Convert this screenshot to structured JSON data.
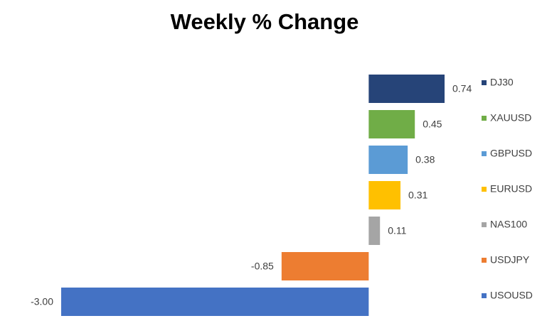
{
  "chart_data": {
    "type": "bar",
    "orientation": "horizontal",
    "title": "Weekly % Change",
    "categories": [
      "DJ30",
      "XAUUSD",
      "GBPUSD",
      "EURUSD",
      "NAS100",
      "USDJPY",
      "USOUSD"
    ],
    "values": [
      0.74,
      0.45,
      0.38,
      0.31,
      0.11,
      -0.85,
      -3.0
    ],
    "value_labels": [
      "0.74",
      "0.45",
      "0.38",
      "0.31",
      "0.11",
      "-0.85",
      "-3.00"
    ],
    "colors": [
      "#264478",
      "#70ad47",
      "#5b9bd5",
      "#ffc000",
      "#a5a5a5",
      "#ed7d31",
      "#4472c4"
    ],
    "xlim": [
      -3.0,
      0.74
    ],
    "legend": "right"
  }
}
